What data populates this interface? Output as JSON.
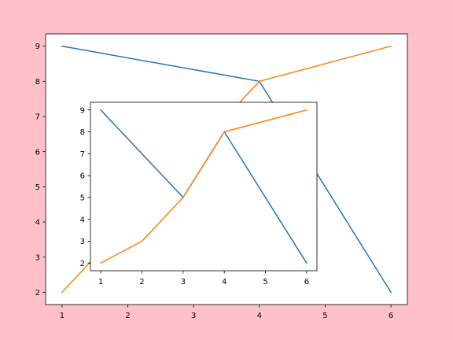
{
  "chart_data": [
    {
      "type": "line",
      "role": "main",
      "title": "",
      "xlabel": "",
      "ylabel": "",
      "xlim": [
        0.75,
        6.25
      ],
      "ylim": [
        1.65,
        9.35
      ],
      "x_ticks": [
        1,
        2,
        3,
        4,
        5,
        6
      ],
      "y_ticks": [
        2,
        3,
        4,
        5,
        6,
        7,
        8,
        9
      ],
      "grid": false,
      "series": [
        {
          "color": "#1f77b4",
          "x": [
            1,
            4,
            6
          ],
          "y": [
            9,
            8,
            2
          ]
        },
        {
          "color": "#ff7f0e",
          "x": [
            1,
            4,
            6
          ],
          "y": [
            2,
            8,
            9
          ]
        }
      ]
    },
    {
      "type": "line",
      "role": "inset",
      "title": "",
      "xlabel": "",
      "ylabel": "",
      "xlim": [
        0.75,
        6.25
      ],
      "ylim": [
        1.65,
        9.35
      ],
      "x_ticks": [
        1,
        2,
        3,
        4,
        5,
        6
      ],
      "y_ticks": [
        2,
        3,
        4,
        5,
        6,
        7,
        8,
        9
      ],
      "grid": false,
      "series": [
        {
          "color": "#1f77b4",
          "x": [
            1,
            3,
            4,
            6
          ],
          "y": [
            9,
            5,
            8,
            2
          ]
        },
        {
          "color": "#ff7f0e",
          "x": [
            1,
            2,
            3,
            4,
            6
          ],
          "y": [
            2,
            3,
            5,
            8,
            9
          ]
        }
      ]
    }
  ],
  "colors": {
    "figure_background": "#ffc0cb",
    "axes_background": "#ffffff"
  }
}
